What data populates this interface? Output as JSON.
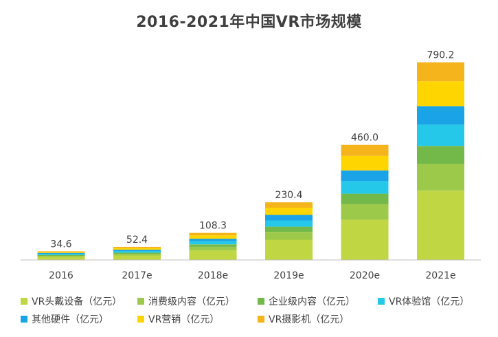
{
  "chart_data": {
    "type": "bar",
    "stacked": true,
    "title": "2016-2021年中国VR市场规模",
    "categories": [
      "2016",
      "2017e",
      "2018e",
      "2019e",
      "2020e",
      "2021e"
    ],
    "totals": [
      "34.6",
      "52.4",
      "108.3",
      "230.4",
      "460.0",
      "790.2"
    ],
    "series": [
      {
        "name": "VR头戴设备（亿元）",
        "color": "#c0d642",
        "values": [
          12.0,
          18.0,
          38.0,
          81.0,
          161.0,
          277.0
        ]
      },
      {
        "name": "消费级内容（亿元）",
        "color": "#9dc94a",
        "values": [
          4.5,
          6.5,
          14.5,
          31.0,
          62.0,
          107.0
        ]
      },
      {
        "name": "企业级内容（亿元）",
        "color": "#72b94a",
        "values": [
          3.5,
          4.7,
          10.0,
          21.0,
          42.0,
          72.0
        ]
      },
      {
        "name": "VR体验馆（亿元）",
        "color": "#25c8e8",
        "values": [
          4.6,
          6.5,
          12.5,
          25.0,
          50.0,
          85.0
        ]
      },
      {
        "name": "其他硬件（亿元）",
        "color": "#1aa3e6",
        "values": [
          3.5,
          5.3,
          10.0,
          22.0,
          43.0,
          74.0
        ]
      },
      {
        "name": "VR营销（亿元）",
        "color": "#ffd500",
        "values": [
          3.5,
          6.0,
          13.5,
          29.0,
          58.0,
          99.0
        ]
      },
      {
        "name": "VR摄影机（亿元）",
        "color": "#f5b41b",
        "values": [
          3.0,
          5.4,
          9.8,
          21.4,
          44.0,
          76.2
        ]
      }
    ],
    "grid": false,
    "legend_position": "bottom"
  }
}
